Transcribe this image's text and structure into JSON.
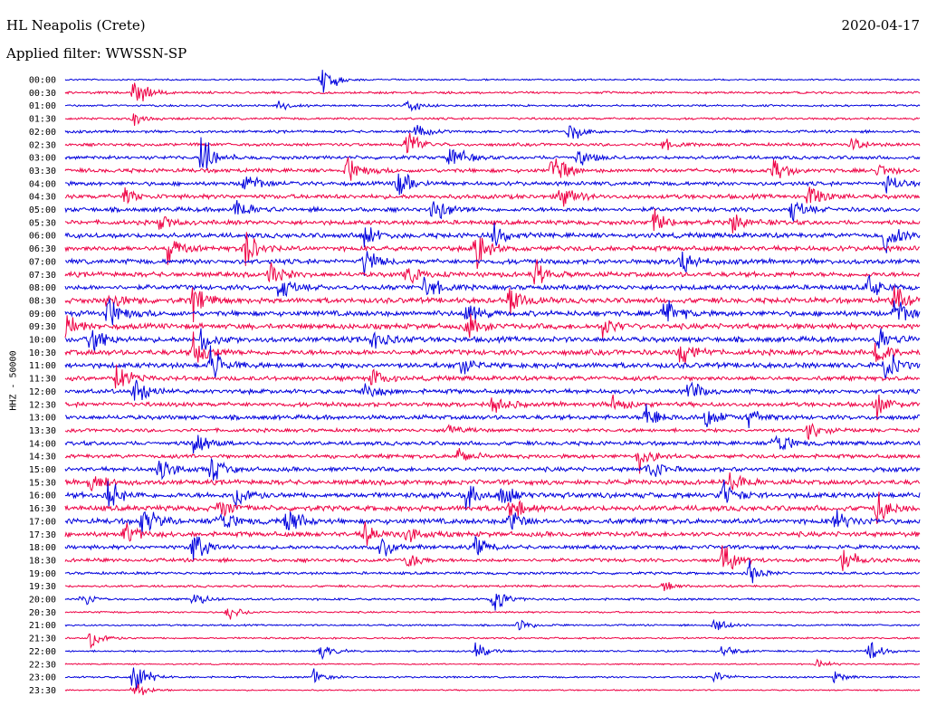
{
  "header": {
    "station": "HL Neapolis (Crete)",
    "date": "2020-04-17",
    "filter": "Applied filter: WWSSN-SP",
    "channel": "HHZ - 50000"
  },
  "chart_data": {
    "type": "line",
    "title": "HL Neapolis (Crete)",
    "ylabel": "HHZ - 50000",
    "xlabel": "",
    "colors": [
      "#0000dd",
      "#ee0044"
    ],
    "traces": [
      {
        "label": "00:00",
        "events": [
          [
            0.3,
            2.2
          ]
        ],
        "noise": 0.35
      },
      {
        "label": "00:30",
        "events": [
          [
            0.08,
            2.0
          ]
        ],
        "noise": 0.5
      },
      {
        "label": "01:00",
        "events": [
          [
            0.4,
            1.0
          ],
          [
            0.25,
            0.5
          ]
        ],
        "noise": 0.45
      },
      {
        "label": "01:30",
        "events": [
          [
            0.08,
            0.6
          ]
        ],
        "noise": 0.5
      },
      {
        "label": "02:00",
        "events": [
          [
            0.59,
            1.2
          ],
          [
            0.41,
            0.7
          ]
        ],
        "noise": 0.6
      },
      {
        "label": "02:30",
        "events": [
          [
            0.4,
            1.8
          ],
          [
            0.92,
            0.9
          ],
          [
            0.7,
            0.6
          ]
        ],
        "noise": 0.7
      },
      {
        "label": "03:00",
        "events": [
          [
            0.16,
            2.5
          ],
          [
            0.45,
            1.8
          ],
          [
            0.6,
            1.0
          ]
        ],
        "noise": 0.8
      },
      {
        "label": "03:30",
        "events": [
          [
            0.33,
            1.5
          ],
          [
            0.57,
            2.0
          ],
          [
            0.83,
            1.6
          ],
          [
            0.95,
            1.0
          ]
        ],
        "noise": 0.9
      },
      {
        "label": "04:00",
        "events": [
          [
            0.21,
            1.5
          ],
          [
            0.39,
            1.8
          ],
          [
            0.96,
            1.2
          ]
        ],
        "noise": 0.9
      },
      {
        "label": "04:30",
        "events": [
          [
            0.07,
            1.0
          ],
          [
            0.58,
            1.5
          ],
          [
            0.87,
            1.6
          ]
        ],
        "noise": 1.0
      },
      {
        "label": "05:00",
        "events": [
          [
            0.43,
            2.0
          ],
          [
            0.2,
            1.4
          ],
          [
            0.85,
            1.2
          ]
        ],
        "noise": 1.0
      },
      {
        "label": "05:30",
        "events": [
          [
            0.11,
            1.0
          ],
          [
            0.69,
            1.5
          ],
          [
            0.78,
            1.2
          ]
        ],
        "noise": 1.0
      },
      {
        "label": "06:00",
        "events": [
          [
            0.35,
            1.5
          ],
          [
            0.96,
            2.2
          ],
          [
            0.5,
            1.4
          ]
        ],
        "noise": 1.1
      },
      {
        "label": "06:30",
        "events": [
          [
            0.12,
            1.5
          ],
          [
            0.21,
            2.2
          ],
          [
            0.48,
            2.5
          ]
        ],
        "noise": 1.1
      },
      {
        "label": "07:00",
        "events": [
          [
            0.35,
            1.6
          ],
          [
            0.72,
            1.8
          ]
        ],
        "noise": 1.1
      },
      {
        "label": "07:30",
        "events": [
          [
            0.24,
            1.6
          ],
          [
            0.4,
            1.2
          ],
          [
            0.55,
            1.4
          ]
        ],
        "noise": 1.1
      },
      {
        "label": "08:00",
        "events": [
          [
            0.42,
            1.8
          ],
          [
            0.25,
            1.4
          ],
          [
            0.94,
            1.4
          ]
        ],
        "noise": 1.1
      },
      {
        "label": "08:30",
        "events": [
          [
            0.05,
            1.5
          ],
          [
            0.15,
            1.8
          ],
          [
            0.52,
            2.0
          ],
          [
            0.97,
            1.6
          ]
        ],
        "noise": 1.2
      },
      {
        "label": "09:00",
        "events": [
          [
            0.05,
            1.8
          ],
          [
            0.47,
            1.6
          ],
          [
            0.7,
            2.0
          ],
          [
            0.97,
            2.0
          ]
        ],
        "noise": 1.2
      },
      {
        "label": "09:30",
        "events": [
          [
            0.0,
            1.4
          ],
          [
            0.47,
            1.5
          ],
          [
            0.63,
            1.2
          ]
        ],
        "noise": 1.2
      },
      {
        "label": "10:00",
        "events": [
          [
            0.03,
            2.0
          ],
          [
            0.16,
            1.4
          ],
          [
            0.36,
            1.5
          ],
          [
            0.95,
            1.4
          ]
        ],
        "noise": 1.2
      },
      {
        "label": "10:30",
        "events": [
          [
            0.15,
            1.6
          ],
          [
            0.72,
            1.8
          ],
          [
            0.95,
            1.5
          ]
        ],
        "noise": 1.2
      },
      {
        "label": "11:00",
        "events": [
          [
            0.17,
            1.8
          ],
          [
            0.46,
            1.2
          ],
          [
            0.96,
            1.5
          ]
        ],
        "noise": 1.2
      },
      {
        "label": "11:30",
        "events": [
          [
            0.06,
            1.8
          ],
          [
            0.36,
            1.0
          ]
        ],
        "noise": 1.0
      },
      {
        "label": "12:00",
        "events": [
          [
            0.08,
            1.6
          ],
          [
            0.35,
            1.2
          ],
          [
            0.73,
            1.2
          ]
        ],
        "noise": 1.0
      },
      {
        "label": "12:30",
        "events": [
          [
            0.5,
            1.4
          ],
          [
            0.64,
            1.0
          ],
          [
            0.95,
            1.6
          ]
        ],
        "noise": 1.0
      },
      {
        "label": "13:00",
        "events": [
          [
            0.68,
            1.4
          ],
          [
            0.75,
            1.2
          ],
          [
            0.8,
            1.0
          ]
        ],
        "noise": 1.0
      },
      {
        "label": "13:30",
        "events": [
          [
            0.87,
            1.2
          ],
          [
            0.45,
            0.7
          ]
        ],
        "noise": 0.8
      },
      {
        "label": "14:00",
        "events": [
          [
            0.15,
            1.6
          ],
          [
            0.83,
            1.8
          ]
        ],
        "noise": 0.9
      },
      {
        "label": "14:30",
        "events": [
          [
            0.67,
            1.6
          ],
          [
            0.46,
            1.0
          ]
        ],
        "noise": 0.9
      },
      {
        "label": "15:00",
        "events": [
          [
            0.11,
            1.6
          ],
          [
            0.17,
            1.5
          ],
          [
            0.68,
            1.6
          ]
        ],
        "noise": 1.0
      },
      {
        "label": "15:30",
        "events": [
          [
            0.03,
            1.2
          ],
          [
            0.78,
            1.6
          ]
        ],
        "noise": 1.1
      },
      {
        "label": "16:00",
        "events": [
          [
            0.05,
            1.8
          ],
          [
            0.2,
            1.8
          ],
          [
            0.47,
            1.6
          ],
          [
            0.51,
            1.5
          ],
          [
            0.77,
            1.5
          ]
        ],
        "noise": 1.2
      },
      {
        "label": "16:30",
        "events": [
          [
            0.18,
            1.4
          ],
          [
            0.52,
            1.6
          ],
          [
            0.95,
            1.6
          ]
        ],
        "noise": 1.2
      },
      {
        "label": "17:00",
        "events": [
          [
            0.09,
            1.8
          ],
          [
            0.18,
            1.6
          ],
          [
            0.26,
            1.8
          ],
          [
            0.52,
            1.4
          ],
          [
            0.9,
            1.2
          ]
        ],
        "noise": 1.2
      },
      {
        "label": "17:30",
        "events": [
          [
            0.07,
            1.4
          ],
          [
            0.35,
            1.2
          ],
          [
            0.4,
            0.9
          ]
        ],
        "noise": 1.1
      },
      {
        "label": "18:00",
        "events": [
          [
            0.15,
            1.8
          ],
          [
            0.37,
            1.2
          ],
          [
            0.48,
            1.0
          ]
        ],
        "noise": 0.9
      },
      {
        "label": "18:30",
        "events": [
          [
            0.4,
            1.0
          ],
          [
            0.77,
            1.8
          ],
          [
            0.91,
            1.4
          ]
        ],
        "noise": 0.8
      },
      {
        "label": "19:00",
        "events": [
          [
            0.8,
            1.2
          ]
        ],
        "noise": 0.6
      },
      {
        "label": "19:30",
        "events": [
          [
            0.7,
            0.5
          ]
        ],
        "noise": 0.5
      },
      {
        "label": "20:00",
        "events": [
          [
            0.02,
            1.0
          ],
          [
            0.15,
            0.8
          ],
          [
            0.5,
            1.5
          ]
        ],
        "noise": 0.5
      },
      {
        "label": "20:30",
        "events": [
          [
            0.19,
            0.8
          ]
        ],
        "noise": 0.4
      },
      {
        "label": "21:00",
        "events": [
          [
            0.53,
            0.7
          ],
          [
            0.76,
            0.9
          ]
        ],
        "noise": 0.4
      },
      {
        "label": "21:30",
        "events": [
          [
            0.03,
            1.4
          ]
        ],
        "noise": 0.4
      },
      {
        "label": "22:00",
        "events": [
          [
            0.3,
            0.8
          ],
          [
            0.48,
            0.9
          ],
          [
            0.77,
            0.9
          ],
          [
            0.94,
            1.2
          ]
        ],
        "noise": 0.4
      },
      {
        "label": "22:30",
        "events": [
          [
            0.88,
            0.5
          ]
        ],
        "noise": 0.3
      },
      {
        "label": "23:00",
        "events": [
          [
            0.08,
            2.2
          ],
          [
            0.29,
            0.8
          ],
          [
            0.76,
            0.7
          ],
          [
            0.9,
            0.6
          ]
        ],
        "noise": 0.4
      },
      {
        "label": "23:30",
        "events": [
          [
            0.08,
            1.2
          ]
        ],
        "noise": 0.3
      }
    ]
  }
}
